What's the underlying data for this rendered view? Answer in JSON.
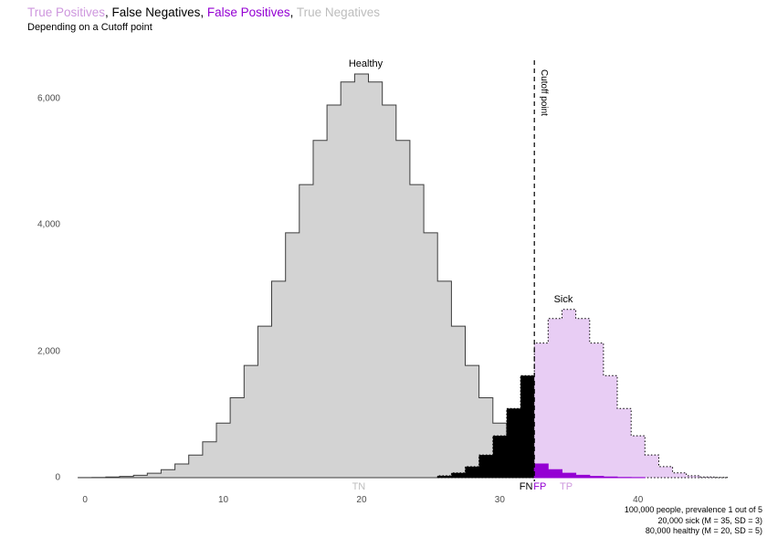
{
  "title": {
    "part_tp": "True Positives",
    "sep1": ", ",
    "part_fn": "False Negatives",
    "sep2": ", ",
    "part_fp": "False Positives",
    "sep3": ", ",
    "part_tn": "True Negatives",
    "subtitle": "Depending on a Cutoff point"
  },
  "annotations": {
    "healthy": "Healthy",
    "sick": "Sick",
    "cutoff": "Cutoff point",
    "tn": "TN",
    "fn": "FN",
    "fp": "FP",
    "tp": "TP"
  },
  "caption": {
    "line1": "100,000 people, prevalence 1 out of 5",
    "line2": "20,000 sick (M = 35, SD = 3)",
    "line3": "80,000 healthy (M = 20, SD = 5)"
  },
  "colors": {
    "tp_text": "#CE97DE",
    "tp_fill": "#E8CDF4",
    "fp": "#9400D3",
    "fn": "#000000",
    "tn_text": "#BDBDBD",
    "tn_fill": "#D3D3D3",
    "healthy_outline": "#3D3D3D",
    "sick_outline": "#000000",
    "cutoff_line": "#000000",
    "axis_text": "#4D4D4D"
  },
  "chart_data": {
    "type": "step-histogram",
    "title": "True Positives, False Negatives, False Positives, True Negatives",
    "subtitle": "Depending on a Cutoff point",
    "cutoff": 32.5,
    "bin_width": 1,
    "xlim": [
      -1.2,
      49
    ],
    "ylim": [
      0,
      6600
    ],
    "x_ticks": [
      {
        "v": 0,
        "label": "0"
      },
      {
        "v": 10,
        "label": "10"
      },
      {
        "v": 20,
        "label": "20"
      },
      {
        "v": 30,
        "label": "30"
      },
      {
        "v": 40,
        "label": "40"
      }
    ],
    "y_ticks": [
      {
        "v": 0,
        "label": "0"
      },
      {
        "v": 2000,
        "label": "2,000"
      },
      {
        "v": 4000,
        "label": "4,000"
      },
      {
        "v": 6000,
        "label": "6,000"
      }
    ],
    "series": [
      {
        "name": "Healthy",
        "n": 80000,
        "mean": 20,
        "sd": 5,
        "centers": [
          0,
          1,
          2,
          3,
          4,
          5,
          6,
          7,
          8,
          9,
          10,
          11,
          12,
          13,
          14,
          15,
          16,
          17,
          18,
          19,
          20,
          21,
          22,
          23,
          24,
          25,
          26,
          27,
          28,
          29,
          30,
          31,
          32,
          33,
          34,
          35,
          36,
          37,
          38,
          39,
          40
        ],
        "counts": [
          2,
          5,
          10,
          20,
          38,
          71,
          127,
          217,
          358,
          568,
          864,
          1263,
          1775,
          2396,
          3107,
          3872,
          4635,
          5332,
          5892,
          6257,
          6383,
          6257,
          5892,
          5332,
          4635,
          3872,
          3107,
          2396,
          1775,
          1263,
          864,
          568,
          358,
          217,
          127,
          71,
          38,
          20,
          10,
          5,
          2
        ]
      },
      {
        "name": "Sick",
        "n": 20000,
        "mean": 35,
        "sd": 3,
        "centers": [
          26,
          27,
          28,
          29,
          30,
          31,
          32,
          33,
          34,
          35,
          36,
          37,
          38,
          39,
          40,
          41,
          42,
          43,
          44,
          45,
          46
        ],
        "counts": [
          30,
          76,
          175,
          360,
          663,
          1093,
          1613,
          2129,
          2516,
          2660,
          2516,
          2129,
          1613,
          1093,
          663,
          360,
          175,
          76,
          30,
          10,
          3
        ]
      }
    ],
    "regions": {
      "TN": "Healthy below cutoff (gray)",
      "FN": "Sick below cutoff (black)",
      "FP": "Healthy above cutoff (dark violet)",
      "TP": "Sick above cutoff (light purple)"
    }
  }
}
